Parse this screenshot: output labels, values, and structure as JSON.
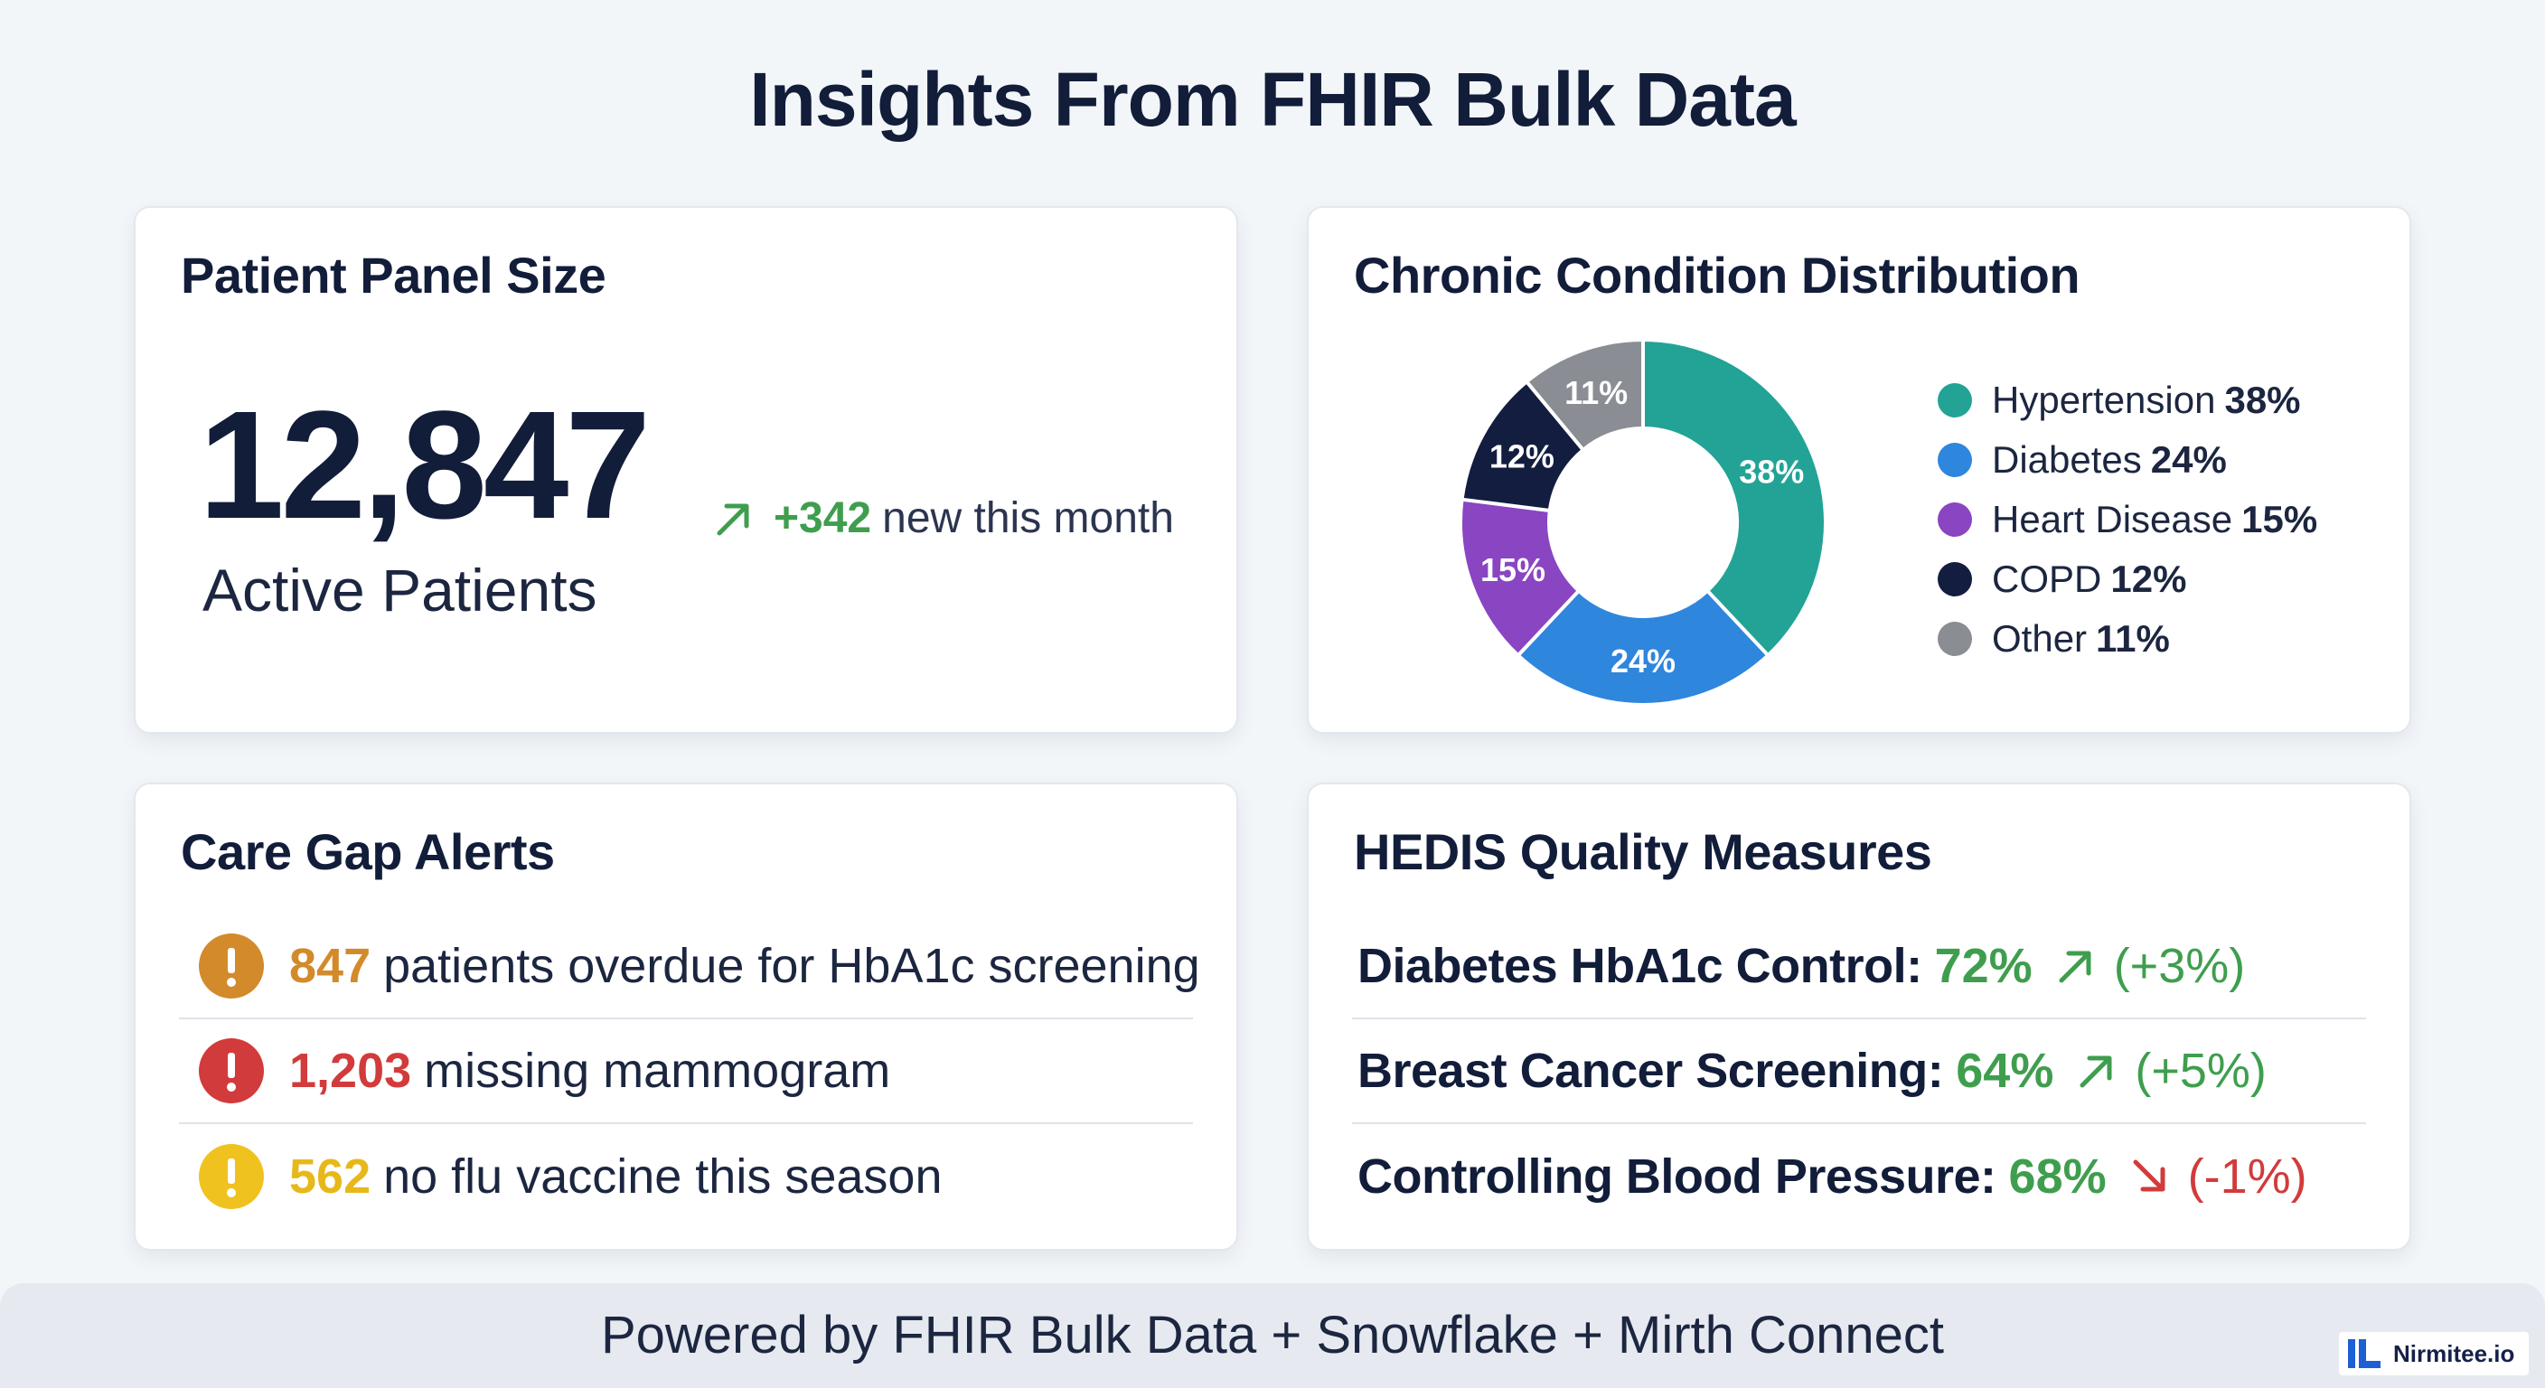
{
  "page": {
    "title": "Insights From FHIR Bulk Data"
  },
  "patient_panel": {
    "title": "Patient Panel Size",
    "count": "12,847",
    "caption": "Active Patients",
    "trend_value": "+342",
    "trend_text": "new this month",
    "trend_color": "#3f9e4e"
  },
  "chronic": {
    "title": "Chronic Condition Distribution",
    "legend": [
      {
        "label": "Hypertension",
        "value": "38%"
      },
      {
        "label": "Diabetes",
        "value": "24%"
      },
      {
        "label": "Heart Disease",
        "value": "15%"
      },
      {
        "label": "COPD",
        "value": "12%"
      },
      {
        "label": "Other",
        "value": "11%"
      }
    ]
  },
  "chart_data": {
    "type": "pie",
    "title": "Chronic Condition Distribution",
    "categories": [
      "Hypertension",
      "Diabetes",
      "Heart Disease",
      "COPD",
      "Other"
    ],
    "values": [
      38,
      24,
      15,
      12,
      11
    ],
    "labels": [
      "38%",
      "24%",
      "15%",
      "12%",
      "11%"
    ],
    "colors": [
      "#22a396",
      "#2f86dd",
      "#8a45c2",
      "#131d3f",
      "#8a8d93"
    ],
    "legend_position": "right"
  },
  "care_gap": {
    "title": "Care Gap Alerts",
    "alerts": [
      {
        "count": "847",
        "text": "patients overdue for HbA1c screening",
        "color": "#d38a2b",
        "icon": "exclamation-icon"
      },
      {
        "count": "1,203",
        "text": "missing mammogram",
        "color": "#d23b3b",
        "icon": "exclamation-icon"
      },
      {
        "count": "562",
        "text": "no flu vaccine this season",
        "color": "#f0c21f",
        "icon": "exclamation-icon"
      }
    ]
  },
  "hedis": {
    "title": "HEDIS Quality Measures",
    "measures": [
      {
        "label": "Diabetes HbA1c Control:",
        "pct": "72%",
        "change": "(+3%)",
        "direction": "up",
        "color": "#3f9e4e",
        "change_color": "#3f9e4e",
        "icon": "arrow-up-right-icon"
      },
      {
        "label": "Breast Cancer Screening:",
        "pct": "64%",
        "change": "(+5%)",
        "direction": "up",
        "color": "#3f9e4e",
        "change_color": "#3f9e4e",
        "icon": "arrow-up-right-icon"
      },
      {
        "label": "Controlling Blood Pressure:",
        "pct": "68%",
        "change": "(-1%)",
        "direction": "down",
        "color": "#3f9e4e",
        "change_color": "#d23b3b",
        "icon": "arrow-down-right-icon"
      }
    ]
  },
  "footer": {
    "text": "Powered by FHIR Bulk Data + Snowflake + Mirth Connect"
  },
  "brand": {
    "name": "Nirmitee.io",
    "color": "#1e5fd6"
  }
}
